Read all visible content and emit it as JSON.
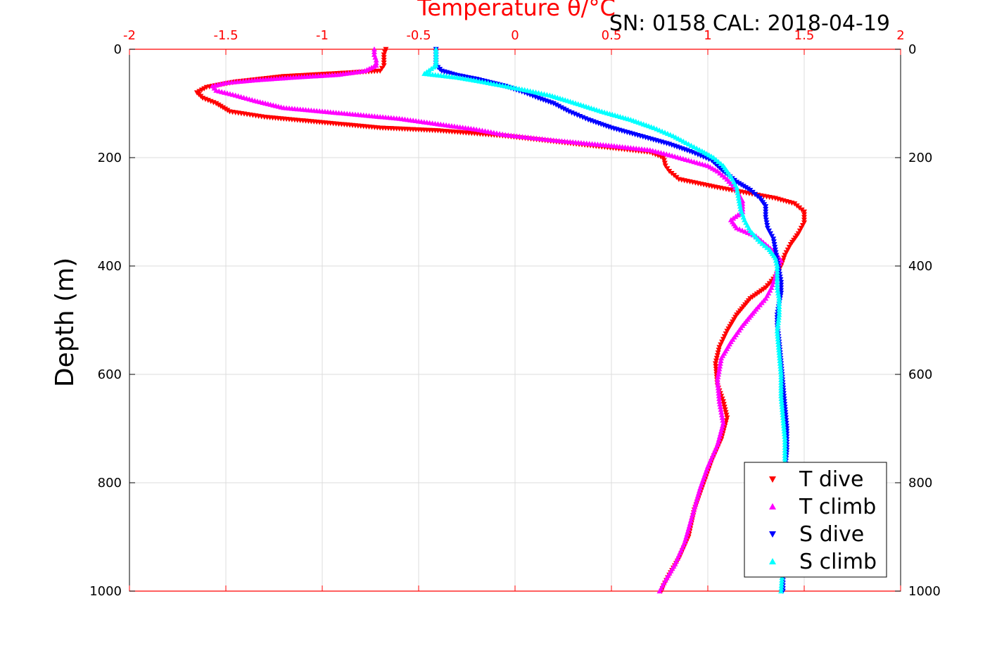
{
  "header": {
    "top_label": "Temperature θ/°C",
    "serial": "SN: 0158  CAL: 2018-04-19"
  },
  "chart_data": {
    "type": "scatter",
    "title": "",
    "xlabel": "Temperature θ/°C",
    "ylabel": "Depth (m)",
    "xlim": [
      -2,
      2
    ],
    "ylim": [
      1000,
      0
    ],
    "x_ticks": [
      "-2",
      "-1.5",
      "-1",
      "-0.5",
      "0",
      "0.5",
      "1",
      "1.5",
      "2"
    ],
    "y_ticks": [
      "0",
      "200",
      "400",
      "600",
      "800",
      "1000"
    ],
    "grid": true,
    "legend_position": "bottom-right",
    "colors": {
      "axis_top": "#ff0000",
      "grid": "#dcdcdc"
    },
    "series": [
      {
        "name": "T dive",
        "marker": "triangle-down",
        "color": "#ff0000",
        "points": [
          [
            -0.67,
            0
          ],
          [
            -0.68,
            10
          ],
          [
            -0.68,
            20
          ],
          [
            -0.68,
            30
          ],
          [
            -0.7,
            40
          ],
          [
            -0.95,
            45
          ],
          [
            -1.2,
            50
          ],
          [
            -1.45,
            60
          ],
          [
            -1.6,
            70
          ],
          [
            -1.65,
            80
          ],
          [
            -1.62,
            90
          ],
          [
            -1.55,
            100
          ],
          [
            -1.48,
            115
          ],
          [
            -1.3,
            125
          ],
          [
            -1.0,
            135
          ],
          [
            -0.7,
            145
          ],
          [
            -0.4,
            150
          ],
          [
            -0.05,
            160
          ],
          [
            0.2,
            170
          ],
          [
            0.45,
            180
          ],
          [
            0.7,
            190
          ],
          [
            0.77,
            200
          ],
          [
            0.78,
            215
          ],
          [
            0.8,
            225
          ],
          [
            0.85,
            240
          ],
          [
            1.05,
            255
          ],
          [
            1.2,
            265
          ],
          [
            1.35,
            275
          ],
          [
            1.45,
            285
          ],
          [
            1.5,
            300
          ],
          [
            1.5,
            320
          ],
          [
            1.47,
            340
          ],
          [
            1.43,
            360
          ],
          [
            1.4,
            380
          ],
          [
            1.38,
            400
          ],
          [
            1.35,
            420
          ],
          [
            1.3,
            440
          ],
          [
            1.22,
            460
          ],
          [
            1.15,
            490
          ],
          [
            1.1,
            520
          ],
          [
            1.06,
            550
          ],
          [
            1.04,
            580
          ],
          [
            1.05,
            620
          ],
          [
            1.08,
            650
          ],
          [
            1.1,
            680
          ],
          [
            1.07,
            720
          ],
          [
            1.02,
            760
          ],
          [
            0.98,
            800
          ],
          [
            0.93,
            850
          ],
          [
            0.9,
            900
          ],
          [
            0.85,
            940
          ],
          [
            0.8,
            970
          ],
          [
            0.77,
            990
          ],
          [
            0.76,
            1000
          ]
        ]
      },
      {
        "name": "T climb",
        "marker": "triangle-up",
        "color": "#ff00ff",
        "points": [
          [
            -0.73,
            0
          ],
          [
            -0.73,
            10
          ],
          [
            -0.72,
            20
          ],
          [
            -0.72,
            30
          ],
          [
            -0.78,
            40
          ],
          [
            -0.92,
            47
          ],
          [
            -1.15,
            52
          ],
          [
            -1.35,
            57
          ],
          [
            -1.5,
            62
          ],
          [
            -1.57,
            68
          ],
          [
            -1.55,
            76
          ],
          [
            -1.45,
            85
          ],
          [
            -1.35,
            95
          ],
          [
            -1.2,
            108
          ],
          [
            -0.9,
            118
          ],
          [
            -0.6,
            128
          ],
          [
            -0.4,
            138
          ],
          [
            -0.2,
            148
          ],
          [
            -0.05,
            158
          ],
          [
            0.2,
            168
          ],
          [
            0.5,
            178
          ],
          [
            0.7,
            186
          ],
          [
            0.8,
            195
          ],
          [
            0.9,
            205
          ],
          [
            1.0,
            215
          ],
          [
            1.05,
            225
          ],
          [
            1.1,
            240
          ],
          [
            1.15,
            260
          ],
          [
            1.18,
            280
          ],
          [
            1.18,
            300
          ],
          [
            1.12,
            315
          ],
          [
            1.15,
            330
          ],
          [
            1.25,
            345
          ],
          [
            1.3,
            360
          ],
          [
            1.35,
            375
          ],
          [
            1.38,
            390
          ],
          [
            1.36,
            405
          ],
          [
            1.35,
            420
          ],
          [
            1.33,
            440
          ],
          [
            1.3,
            460
          ],
          [
            1.25,
            480
          ],
          [
            1.18,
            510
          ],
          [
            1.12,
            540
          ],
          [
            1.07,
            570
          ],
          [
            1.05,
            610
          ],
          [
            1.06,
            650
          ],
          [
            1.08,
            690
          ],
          [
            1.05,
            730
          ],
          [
            1.0,
            770
          ],
          [
            0.96,
            810
          ],
          [
            0.92,
            860
          ],
          [
            0.88,
            910
          ],
          [
            0.83,
            950
          ],
          [
            0.78,
            980
          ],
          [
            0.75,
            1000
          ]
        ]
      },
      {
        "name": "S dive",
        "marker": "triangle-down",
        "color": "#0000ff",
        "points": [
          [
            -0.41,
            0
          ],
          [
            -0.41,
            15
          ],
          [
            -0.41,
            30
          ],
          [
            -0.38,
            40
          ],
          [
            -0.3,
            48
          ],
          [
            -0.2,
            55
          ],
          [
            -0.05,
            68
          ],
          [
            0.05,
            80
          ],
          [
            0.12,
            90
          ],
          [
            0.2,
            100
          ],
          [
            0.28,
            115
          ],
          [
            0.38,
            130
          ],
          [
            0.5,
            145
          ],
          [
            0.65,
            160
          ],
          [
            0.8,
            175
          ],
          [
            0.92,
            190
          ],
          [
            1.02,
            205
          ],
          [
            1.08,
            225
          ],
          [
            1.15,
            245
          ],
          [
            1.22,
            260
          ],
          [
            1.27,
            275
          ],
          [
            1.3,
            290
          ],
          [
            1.3,
            310
          ],
          [
            1.31,
            330
          ],
          [
            1.34,
            350
          ],
          [
            1.35,
            370
          ],
          [
            1.36,
            390
          ],
          [
            1.37,
            410
          ],
          [
            1.38,
            430
          ],
          [
            1.38,
            450
          ],
          [
            1.37,
            470
          ],
          [
            1.36,
            490
          ],
          [
            1.36,
            510
          ],
          [
            1.37,
            540
          ],
          [
            1.38,
            580
          ],
          [
            1.39,
            620
          ],
          [
            1.4,
            660
          ],
          [
            1.41,
            700
          ],
          [
            1.41,
            740
          ],
          [
            1.4,
            780
          ],
          [
            1.4,
            820
          ],
          [
            1.39,
            860
          ],
          [
            1.39,
            900
          ],
          [
            1.39,
            940
          ],
          [
            1.39,
            970
          ],
          [
            1.39,
            1000
          ]
        ]
      },
      {
        "name": "S climb",
        "marker": "triangle-up",
        "color": "#00ffff",
        "points": [
          [
            -0.41,
            0
          ],
          [
            -0.41,
            15
          ],
          [
            -0.41,
            30
          ],
          [
            -0.47,
            45
          ],
          [
            -0.3,
            52
          ],
          [
            -0.2,
            58
          ],
          [
            -0.05,
            68
          ],
          [
            0.05,
            75
          ],
          [
            0.18,
            85
          ],
          [
            0.3,
            98
          ],
          [
            0.45,
            115
          ],
          [
            0.6,
            130
          ],
          [
            0.72,
            145
          ],
          [
            0.82,
            160
          ],
          [
            0.9,
            175
          ],
          [
            0.97,
            188
          ],
          [
            1.03,
            200
          ],
          [
            1.08,
            215
          ],
          [
            1.12,
            235
          ],
          [
            1.15,
            255
          ],
          [
            1.16,
            275
          ],
          [
            1.17,
            295
          ],
          [
            1.19,
            315
          ],
          [
            1.22,
            335
          ],
          [
            1.27,
            355
          ],
          [
            1.32,
            370
          ],
          [
            1.35,
            385
          ],
          [
            1.36,
            400
          ],
          [
            1.36,
            420
          ],
          [
            1.36,
            440
          ],
          [
            1.37,
            460
          ],
          [
            1.37,
            490
          ],
          [
            1.36,
            520
          ],
          [
            1.37,
            560
          ],
          [
            1.38,
            600
          ],
          [
            1.38,
            640
          ],
          [
            1.39,
            680
          ],
          [
            1.4,
            720
          ],
          [
            1.4,
            760
          ],
          [
            1.4,
            800
          ],
          [
            1.39,
            850
          ],
          [
            1.39,
            900
          ],
          [
            1.39,
            950
          ],
          [
            1.38,
            1000
          ]
        ]
      }
    ]
  }
}
